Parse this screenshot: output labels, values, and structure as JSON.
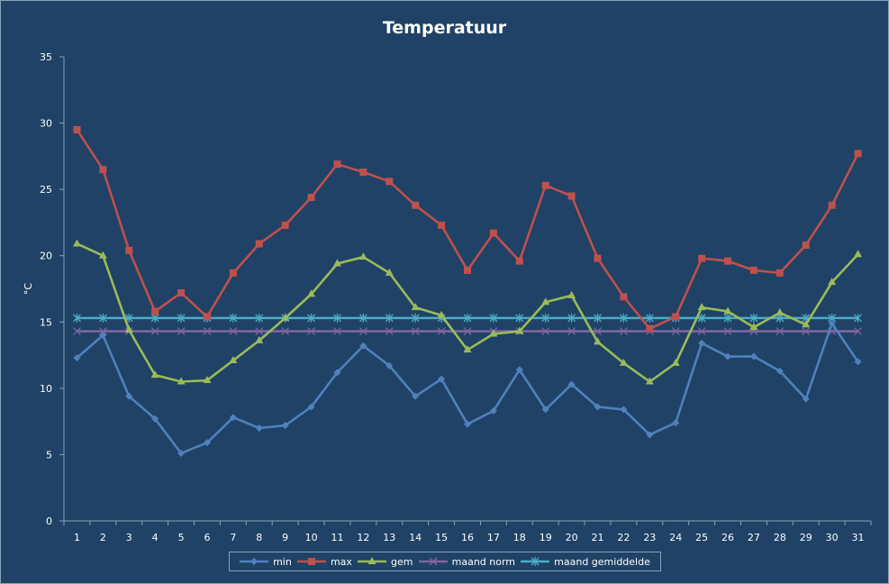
{
  "chart_data": {
    "type": "line",
    "title": "Temperatuur",
    "ylabel": "°C",
    "xlabel": "",
    "ylim": [
      0,
      35
    ],
    "yticks": [
      0,
      5,
      10,
      15,
      20,
      25,
      30,
      35
    ],
    "categories": [
      "1",
      "2",
      "3",
      "4",
      "5",
      "6",
      "7",
      "8",
      "9",
      "10",
      "11",
      "12",
      "13",
      "14",
      "15",
      "16",
      "17",
      "18",
      "19",
      "20",
      "21",
      "22",
      "23",
      "24",
      "25",
      "26",
      "27",
      "28",
      "29",
      "30",
      "31"
    ],
    "grid": false,
    "legend": "bottom",
    "series": [
      {
        "name": "min",
        "color": "#4f81bd",
        "marker": "diamond",
        "values": [
          12.3,
          14.0,
          9.4,
          7.7,
          5.1,
          5.9,
          7.8,
          7.0,
          7.2,
          8.6,
          11.2,
          13.2,
          11.7,
          9.4,
          10.7,
          7.3,
          8.3,
          11.4,
          8.4,
          10.3,
          8.6,
          8.4,
          6.5,
          7.4,
          13.4,
          12.4,
          12.4,
          11.3,
          9.2,
          14.9,
          12.0
        ]
      },
      {
        "name": "max",
        "color": "#c0504d",
        "marker": "square",
        "values": [
          29.5,
          26.5,
          20.4,
          15.8,
          17.2,
          15.4,
          18.7,
          20.9,
          22.3,
          24.4,
          26.9,
          26.3,
          25.6,
          23.8,
          22.3,
          18.9,
          21.7,
          19.6,
          25.3,
          24.5,
          19.8,
          16.9,
          14.5,
          15.4,
          19.8,
          19.6,
          18.9,
          18.7,
          20.8,
          23.8,
          27.7
        ]
      },
      {
        "name": "gem",
        "color": "#9bbb59",
        "marker": "triangle",
        "values": [
          20.9,
          20.0,
          14.4,
          11.0,
          10.5,
          10.6,
          12.1,
          13.6,
          15.3,
          17.1,
          19.4,
          19.9,
          18.7,
          16.1,
          15.5,
          12.9,
          14.1,
          14.3,
          16.5,
          17.0,
          13.5,
          11.9,
          10.5,
          11.9,
          16.1,
          15.8,
          14.6,
          15.7,
          14.8,
          18.0,
          20.1
        ]
      },
      {
        "name": "maand norm",
        "color": "#8064a2",
        "marker": "x",
        "values": [
          14.3,
          14.3,
          14.3,
          14.3,
          14.3,
          14.3,
          14.3,
          14.3,
          14.3,
          14.3,
          14.3,
          14.3,
          14.3,
          14.3,
          14.3,
          14.3,
          14.3,
          14.3,
          14.3,
          14.3,
          14.3,
          14.3,
          14.3,
          14.3,
          14.3,
          14.3,
          14.3,
          14.3,
          14.3,
          14.3,
          14.3
        ]
      },
      {
        "name": "maand gemiddelde",
        "color": "#4bacc6",
        "marker": "star",
        "values": [
          15.3,
          15.3,
          15.3,
          15.3,
          15.3,
          15.3,
          15.3,
          15.3,
          15.3,
          15.3,
          15.3,
          15.3,
          15.3,
          15.3,
          15.3,
          15.3,
          15.3,
          15.3,
          15.3,
          15.3,
          15.3,
          15.3,
          15.3,
          15.3,
          15.3,
          15.3,
          15.3,
          15.3,
          15.3,
          15.3,
          15.3
        ]
      }
    ]
  },
  "colors": {
    "background": "#1f4266",
    "border": "#8aa1b8",
    "axis": "#8aa1b8",
    "text": "#ffffff"
  }
}
